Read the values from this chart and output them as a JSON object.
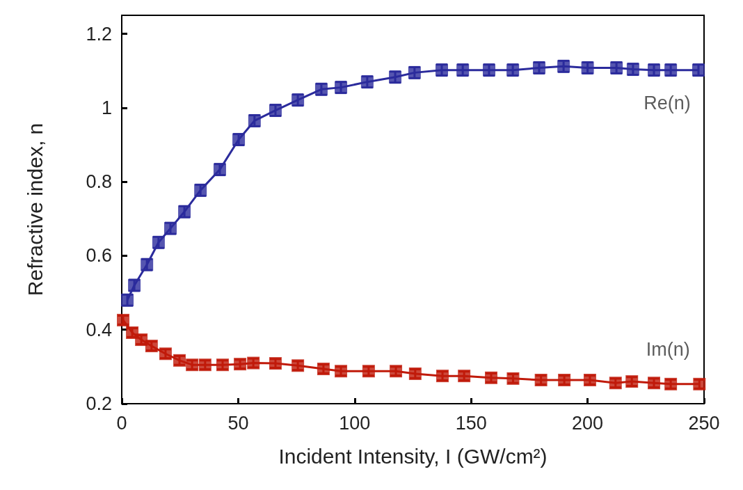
{
  "chart_data": {
    "type": "line",
    "xlabel": "Incident Intensity, I (GW/cm²)",
    "ylabel": "Refractive index, n",
    "xlim": [
      0,
      250
    ],
    "xticks": [
      0,
      50,
      100,
      150,
      200,
      250
    ],
    "ylim": [
      0.2,
      1.25
    ],
    "yticks": [
      0.2,
      0.4,
      0.6,
      0.8,
      1,
      1.2
    ],
    "grid": false,
    "legend": false,
    "marker": "square",
    "line_style": "solid",
    "series": [
      {
        "name": "Re(n)",
        "color": "#2b2b9c",
        "x": [
          2.4,
          5.4,
          10.8,
          15.8,
          20.9,
          26.9,
          33.8,
          42.1,
          50.2,
          57,
          66,
          75.6,
          85.7,
          94.1,
          105.4,
          117.4,
          125.7,
          137.4,
          146.4,
          157.7,
          167.9,
          179.2,
          189.7,
          200,
          212.4,
          219.5,
          228.5,
          235.7,
          247.6
        ],
        "values": [
          0.48,
          0.52,
          0.576,
          0.636,
          0.674,
          0.719,
          0.777,
          0.833,
          0.914,
          0.965,
          0.993,
          1.021,
          1.05,
          1.055,
          1.07,
          1.083,
          1.095,
          1.102,
          1.102,
          1.102,
          1.102,
          1.108,
          1.112,
          1.108,
          1.108,
          1.104,
          1.102,
          1.102,
          1.102
        ],
        "errors": [
          0.015,
          0.015,
          0.015,
          0.015,
          0.015,
          0.015,
          0.015,
          0.015,
          0.015,
          0.015,
          0.015,
          0.015,
          0.015,
          0.015,
          0.015,
          0.015,
          0.015,
          0.015,
          0.015,
          0.015,
          0.015,
          0.015,
          0.015,
          0.015,
          0.015,
          0.015,
          0.015,
          0.015,
          0.015
        ]
      },
      {
        "name": "Im(n)",
        "color": "#c01a0a",
        "x": [
          0.6,
          4.5,
          8.4,
          12.8,
          18.8,
          24.8,
          30.2,
          35.8,
          43.3,
          50.8,
          56.5,
          66,
          75.6,
          86.6,
          94.1,
          106,
          117.7,
          126,
          137.7,
          147,
          158.6,
          168,
          180,
          190,
          201,
          212,
          219,
          228.5,
          235.7,
          248
        ],
        "values": [
          0.426,
          0.392,
          0.373,
          0.356,
          0.335,
          0.317,
          0.305,
          0.305,
          0.305,
          0.307,
          0.31,
          0.309,
          0.303,
          0.294,
          0.288,
          0.288,
          0.288,
          0.281,
          0.275,
          0.275,
          0.27,
          0.268,
          0.264,
          0.264,
          0.264,
          0.256,
          0.26,
          0.256,
          0.253,
          0.253
        ],
        "errors": [
          0.012,
          0.012,
          0.012,
          0.012,
          0.012,
          0.012,
          0.012,
          0.012,
          0.012,
          0.012,
          0.012,
          0.012,
          0.012,
          0.012,
          0.012,
          0.012,
          0.012,
          0.012,
          0.012,
          0.012,
          0.012,
          0.012,
          0.012,
          0.012,
          0.012,
          0.012,
          0.012,
          0.012,
          0.012,
          0.012
        ]
      }
    ]
  }
}
